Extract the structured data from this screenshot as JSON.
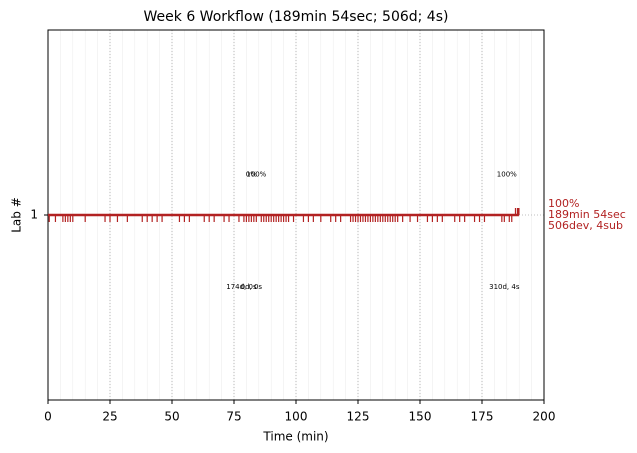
{
  "chart_data": {
    "type": "timeline",
    "title": "Week 6 Workflow (189min 54sec; 506d; 4s)",
    "x_label": "Time (min)",
    "y_label": "Lab #",
    "xlim": [
      0,
      200
    ],
    "xticks": [
      0,
      25,
      50,
      75,
      100,
      125,
      150,
      175,
      200
    ],
    "ylim": [
      0,
      2
    ],
    "yticks": [
      1
    ],
    "grid": true,
    "color": "#b22222",
    "line": {
      "y": 1,
      "start": 0,
      "end": 189.9
    },
    "events": [
      0.5,
      3,
      6,
      7,
      8,
      9,
      10,
      15,
      23,
      25,
      28,
      32,
      38,
      40,
      42,
      44,
      46,
      53,
      55,
      57,
      63,
      65,
      67,
      71,
      73,
      77,
      79,
      80,
      81,
      82,
      83,
      84,
      86,
      87,
      88,
      89,
      90,
      91,
      92,
      93,
      94,
      95,
      96,
      97,
      99,
      103,
      105,
      107,
      110,
      114,
      116,
      118,
      122,
      123,
      124,
      125,
      126,
      127,
      128,
      129,
      130,
      131,
      132,
      133,
      134,
      135,
      136,
      137,
      138,
      139,
      140,
      141,
      143,
      146,
      149,
      153,
      155,
      157,
      159,
      164,
      166,
      168,
      172,
      174,
      176,
      183,
      184,
      186,
      187
    ],
    "submissions": [
      188.5,
      189.3,
      189.7,
      189.9
    ],
    "annotations": [
      {
        "text": "0%",
        "x": 82,
        "y": 1.22
      },
      {
        "text": "100%",
        "x": 84,
        "y": 1.22
      },
      {
        "text": "100%",
        "x": 185,
        "y": 1.22
      },
      {
        "text": "174d, 0s",
        "x": 78,
        "y": 0.61
      },
      {
        "text": "0d, 0s",
        "x": 82,
        "y": 0.61
      },
      {
        "text": "310d, 4s",
        "x": 184,
        "y": 0.61
      }
    ],
    "summary": [
      "100%",
      "189min 54sec",
      "506dev, 4sub"
    ]
  }
}
